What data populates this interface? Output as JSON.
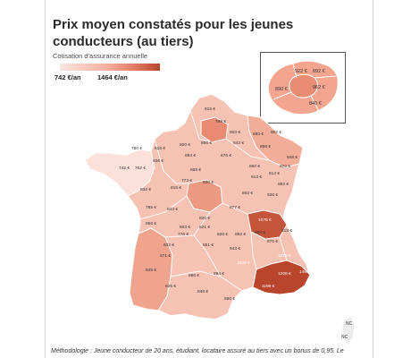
{
  "title": "Prix moyen constatés pour les jeunes conducteurs (au tiers)",
  "subtitle": "Cotisation d'assurance annuelle",
  "legend": {
    "min_label": "742 €/an",
    "max_label": "1464 €/an",
    "min_value": 742,
    "max_value": 1464
  },
  "colors": {
    "low": "#fbe4df",
    "mid": "#f2a690",
    "high": "#b9452c",
    "outline": "#ffffff"
  },
  "inset_labels": [
    "922 €",
    "892 €",
    "890 €",
    "962 €",
    "840 €"
  ],
  "corsica_labels": [
    "NC",
    "NC"
  ],
  "department_labels": [
    {
      "label": "815 €",
      "v": 815
    },
    {
      "label": "798 €",
      "v": 798
    },
    {
      "label": "903 €",
      "v": 903
    },
    {
      "label": "893 €",
      "v": 893
    },
    {
      "label": "802 €",
      "v": 802
    },
    {
      "label": "866 €",
      "v": 866
    },
    {
      "label": "842 €",
      "v": 842
    },
    {
      "label": "800 €",
      "v": 800
    },
    {
      "label": "760 €",
      "v": 760
    },
    {
      "label": "815 €",
      "v": 815
    },
    {
      "label": "868 €",
      "v": 868
    },
    {
      "label": "894 €",
      "v": 894
    },
    {
      "label": "876 €",
      "v": 876
    },
    {
      "label": "848 €",
      "v": 848
    },
    {
      "label": "836 €",
      "v": 836
    },
    {
      "label": "860 €",
      "v": 860
    },
    {
      "label": "870 €",
      "v": 870
    },
    {
      "label": "742 €",
      "v": 742
    },
    {
      "label": "762 €",
      "v": 762
    },
    {
      "label": "868 €",
      "v": 868
    },
    {
      "label": "814 €",
      "v": 814
    },
    {
      "label": "773 €",
      "v": 773
    },
    {
      "label": "813 €",
      "v": 813
    },
    {
      "label": "830 €",
      "v": 830
    },
    {
      "label": "882 €",
      "v": 882
    },
    {
      "label": "832 €",
      "v": 832
    },
    {
      "label": "815 €",
      "v": 815
    },
    {
      "label": "862 €",
      "v": 862
    },
    {
      "label": "926 €",
      "v": 926
    },
    {
      "label": "785 €",
      "v": 785
    },
    {
      "label": "843 €",
      "v": 843
    },
    {
      "label": "877 €",
      "v": 877
    },
    {
      "label": "820 €",
      "v": 820
    },
    {
      "label": "866 €",
      "v": 866
    },
    {
      "label": "803 €",
      "v": 803
    },
    {
      "label": "1076 €",
      "v": 1076
    },
    {
      "label": "826 €",
      "v": 826
    },
    {
      "label": "776 €",
      "v": 776
    },
    {
      "label": "821 €",
      "v": 821
    },
    {
      "label": "892 €",
      "v": 892
    },
    {
      "label": "950 €",
      "v": 950
    },
    {
      "label": "918 €",
      "v": 918
    },
    {
      "label": "832 €",
      "v": 832
    },
    {
      "label": "851 €",
      "v": 851
    },
    {
      "label": "943 €",
      "v": 943
    },
    {
      "label": "875 €",
      "v": 875
    },
    {
      "label": "871 €",
      "v": 871
    },
    {
      "label": "1043 €",
      "v": 1043
    },
    {
      "label": "1075 €",
      "v": 1075
    },
    {
      "label": "1464 €",
      "v": 1464
    },
    {
      "label": "845 €",
      "v": 845
    },
    {
      "label": "886 €",
      "v": 886
    },
    {
      "label": "894 €",
      "v": 894
    },
    {
      "label": "1209 €",
      "v": 1209
    },
    {
      "label": "1189 €",
      "v": 1189
    },
    {
      "label": "825 €",
      "v": 825
    },
    {
      "label": "846 €",
      "v": 846
    },
    {
      "label": "896 €",
      "v": 896
    }
  ],
  "methodology": "Méthodologie : Jeune conducteur de 20 ans, étudiant, locataire assuré au tiers avec un bonus de 0,95. Le"
}
